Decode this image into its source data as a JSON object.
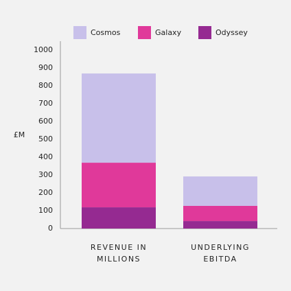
{
  "chart_data": {
    "type": "stacked_bar",
    "y_label": "£M",
    "categories": [
      "REVENUE IN MILLIONS",
      "UNDERLYING EBITDA"
    ],
    "series": [
      {
        "name": "Odyssey",
        "color": "#952a91",
        "values": [
          119,
          42
        ]
      },
      {
        "name": "Galaxy",
        "color": "#e0399a",
        "values": [
          250,
          85
        ]
      },
      {
        "name": "Cosmos",
        "color": "#c8c0ea",
        "values": [
          500,
          165
        ]
      }
    ],
    "legend_order": [
      2,
      1,
      0
    ],
    "ylim": [
      0,
      1000
    ],
    "yticks": [
      0,
      100,
      200,
      300,
      400,
      500,
      600,
      700,
      800,
      900,
      1000
    ],
    "grid": false
  }
}
